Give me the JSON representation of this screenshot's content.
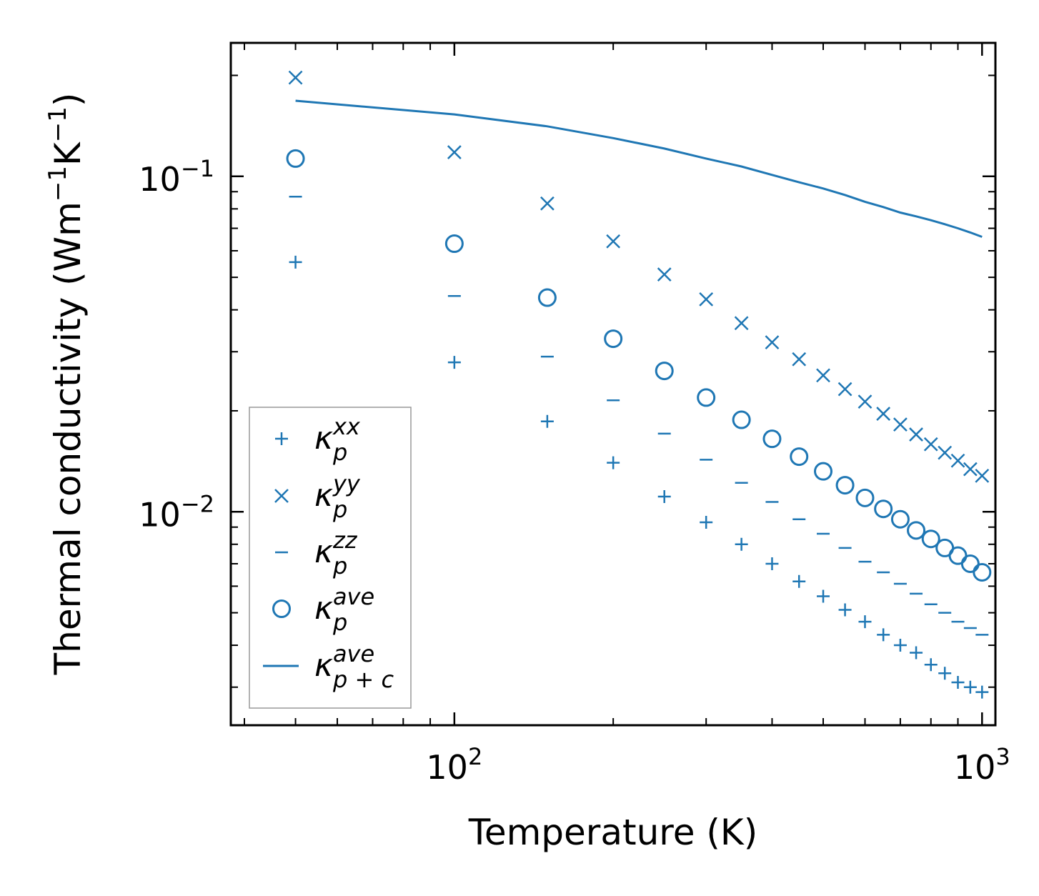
{
  "chart_data": {
    "type": "scatter",
    "xscale": "log",
    "yscale": "log",
    "xlim": [
      37.7,
      1060
    ],
    "ylim": [
      0.00231,
      0.25
    ],
    "xlabel": "Temperature (K)",
    "ylabel": "Thermal conductivity (Wm−1K−1)",
    "ylabel_parts": {
      "prefix": "Thermal conductivity (Wm",
      "sup1": "−1",
      "mid": "K",
      "sup2": "−1",
      "suffix": ")"
    },
    "xticks": [
      {
        "value": 100,
        "base": "10",
        "exp": "2"
      },
      {
        "value": 1000,
        "base": "10",
        "exp": "3"
      }
    ],
    "yticks": [
      {
        "value": 0.01,
        "base": "10",
        "exp": "−2"
      },
      {
        "value": 0.1,
        "base": "10",
        "exp": "−1"
      }
    ],
    "color": "#1f77b4",
    "legend_position": "lower-left",
    "x": [
      50,
      100,
      150,
      200,
      250,
      300,
      350,
      400,
      450,
      500,
      550,
      600,
      650,
      700,
      750,
      800,
      850,
      900,
      950,
      1000
    ],
    "series": [
      {
        "name": "κp^xx",
        "sym": "κ",
        "sub": "p",
        "sup": "xx",
        "marker": "plus",
        "values": [
          0.0555,
          0.0279,
          0.0186,
          0.014,
          0.0111,
          0.0093,
          0.008,
          0.007,
          0.0062,
          0.0056,
          0.0051,
          0.0047,
          0.0043,
          0.004,
          0.0038,
          0.0035,
          0.0033,
          0.0031,
          0.003,
          0.0029
        ]
      },
      {
        "name": "κp^yy",
        "sym": "κ",
        "sub": "p",
        "sup": "yy",
        "marker": "x",
        "values": [
          0.197,
          0.118,
          0.083,
          0.064,
          0.051,
          0.043,
          0.0365,
          0.032,
          0.0285,
          0.0255,
          0.0232,
          0.0213,
          0.0196,
          0.0182,
          0.017,
          0.0159,
          0.015,
          0.0142,
          0.0134,
          0.0128
        ]
      },
      {
        "name": "κp^zz",
        "sym": "κ",
        "sub": "p",
        "sup": "zz",
        "marker": "hline",
        "values": [
          0.087,
          0.044,
          0.029,
          0.0215,
          0.0171,
          0.0143,
          0.0122,
          0.0107,
          0.0095,
          0.0086,
          0.0078,
          0.0071,
          0.0066,
          0.0061,
          0.0057,
          0.0053,
          0.005,
          0.0047,
          0.0045,
          0.0043
        ]
      },
      {
        "name": "κp^ave",
        "sym": "κ",
        "sub": "p",
        "sup": "ave",
        "marker": "circle",
        "values": [
          0.113,
          0.063,
          0.0435,
          0.0328,
          0.0263,
          0.0219,
          0.0188,
          0.0165,
          0.0146,
          0.0132,
          0.012,
          0.011,
          0.0102,
          0.0095,
          0.0088,
          0.0083,
          0.0078,
          0.0074,
          0.007,
          0.0066
        ]
      },
      {
        "name": "κp+c^ave",
        "sym": "κ",
        "sub": "p + c",
        "sup": "ave",
        "marker": "line",
        "values": [
          0.168,
          0.153,
          0.141,
          0.13,
          0.121,
          0.113,
          0.107,
          0.101,
          0.096,
          0.092,
          0.088,
          0.084,
          0.081,
          0.078,
          0.076,
          0.074,
          0.072,
          0.07,
          0.068,
          0.066
        ]
      }
    ]
  }
}
